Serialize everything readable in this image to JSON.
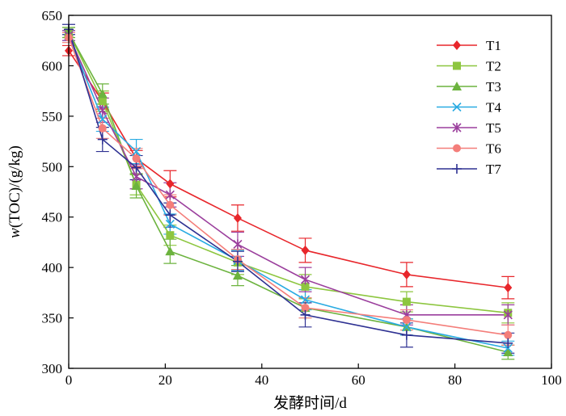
{
  "chart_data": {
    "type": "line",
    "title": "",
    "xlabel": "发酵时间/d",
    "ylabel_parts": {
      "italic": "w",
      "rest": "(TOC)/(g/kg)"
    },
    "xlim": [
      0,
      100
    ],
    "ylim": [
      300,
      650
    ],
    "xticks": [
      0,
      20,
      40,
      60,
      80,
      100
    ],
    "yticks": [
      300,
      350,
      400,
      450,
      500,
      550,
      600,
      650
    ],
    "grid": false,
    "legend_position": "top-right",
    "x": [
      0,
      7,
      14,
      21,
      35,
      49,
      70,
      91
    ],
    "series": [
      {
        "name": "T1",
        "color": "#e8262b",
        "marker": "diamond",
        "values": [
          615,
          565,
          508,
          483,
          449,
          417,
          393,
          380
        ],
        "err": [
          5,
          8,
          8,
          13,
          13,
          12,
          12,
          11
        ]
      },
      {
        "name": "T2",
        "color": "#8dc63f",
        "marker": "square",
        "values": [
          633,
          565,
          482,
          432,
          405,
          381,
          366,
          355
        ],
        "err": [
          5,
          10,
          10,
          10,
          12,
          12,
          10,
          10
        ]
      },
      {
        "name": "T3",
        "color": "#6cb33e",
        "marker": "triangle",
        "values": [
          633,
          572,
          481,
          416,
          392,
          360,
          341,
          316
        ],
        "err": [
          5,
          10,
          12,
          12,
          10,
          10,
          8,
          7
        ]
      },
      {
        "name": "T4",
        "color": "#29abe2",
        "marker": "x",
        "values": [
          630,
          547,
          515,
          443,
          407,
          368,
          341,
          320
        ],
        "err": [
          5,
          12,
          12,
          10,
          10,
          10,
          8,
          7
        ]
      },
      {
        "name": "T5",
        "color": "#9b3f9d",
        "marker": "asterisk",
        "values": [
          630,
          556,
          490,
          472,
          423,
          388,
          353,
          353
        ],
        "err": [
          5,
          12,
          12,
          12,
          12,
          12,
          10,
          10
        ]
      },
      {
        "name": "T6",
        "color": "#f47e7a",
        "marker": "circle",
        "values": [
          628,
          538,
          508,
          462,
          408,
          360,
          348,
          333
        ],
        "err": [
          5,
          10,
          10,
          10,
          10,
          10,
          10,
          10
        ]
      },
      {
        "name": "T7",
        "color": "#2e3192",
        "marker": "plus",
        "values": [
          636,
          527,
          499,
          452,
          406,
          353,
          333,
          325
        ],
        "err": [
          5,
          12,
          12,
          12,
          10,
          12,
          12,
          10
        ]
      }
    ]
  }
}
